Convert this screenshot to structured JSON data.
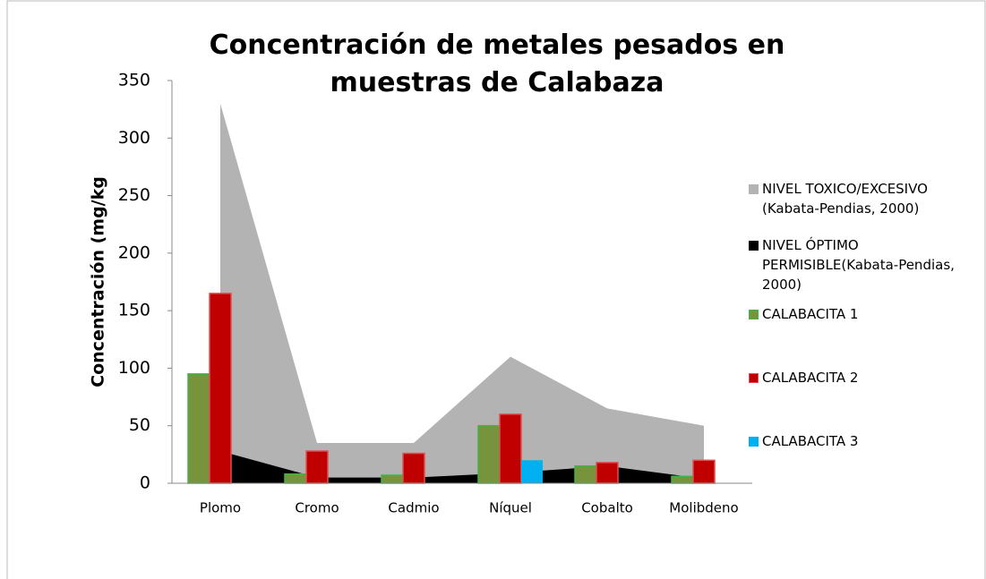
{
  "chart_data": {
    "type": "bar_area",
    "title": "Concentración de metales pesados en muestras de Calabaza",
    "y_label": "Concentración (mg/kg",
    "categories": [
      "Plomo",
      "Cromo",
      "Cadmio",
      "Níquel",
      "Cobalto",
      "Molibdeno"
    ],
    "ylim": [
      0,
      350
    ],
    "yticks": [
      0,
      50,
      100,
      150,
      200,
      250,
      300,
      350
    ],
    "series": [
      {
        "name": "NIVEL TOXICO/EXCESIVO (Kabata-Pendias, 2000)",
        "kind": "area",
        "color": "#b3b3b3",
        "values": [
          330,
          35,
          35,
          110,
          65,
          50
        ]
      },
      {
        "name": "NIVEL ÓPTIMO PERMISIBLE(Kabata-Pendias, 2000)",
        "kind": "area",
        "color": "#000000",
        "values": [
          28,
          5,
          5,
          9,
          15,
          4
        ]
      },
      {
        "name": "CALABACITA 1",
        "kind": "bar",
        "color": "#77933c",
        "values": [
          95,
          8,
          7,
          50,
          15,
          6
        ]
      },
      {
        "name": "CALABACITA 2",
        "kind": "bar",
        "color": "#c00000",
        "values": [
          165,
          28,
          26,
          60,
          18,
          20
        ]
      },
      {
        "name": "CALABACITA 3",
        "kind": "bar",
        "color": "#00b0f0",
        "values": [
          null,
          null,
          null,
          20,
          null,
          null
        ]
      }
    ]
  }
}
